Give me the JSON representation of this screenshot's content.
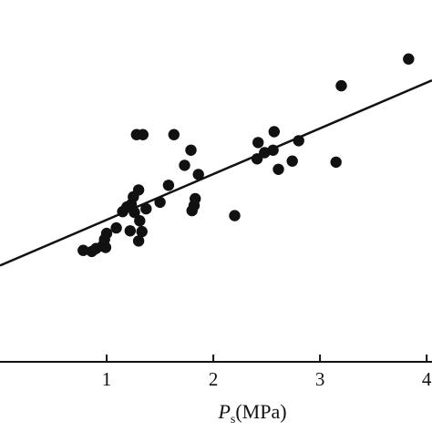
{
  "chart_data": {
    "type": "scatter",
    "xlabel_main": "P",
    "xlabel_sub": "s",
    "xlabel_unit": "(MPa)",
    "xlim": [
      0,
      4.05
    ],
    "ylim": [
      0,
      100
    ],
    "xticks": [
      {
        "value": 1,
        "label": "1"
      },
      {
        "value": 2,
        "label": "2"
      },
      {
        "value": 3,
        "label": "3"
      },
      {
        "value": 4,
        "label": "4"
      }
    ],
    "colors": {
      "points": "#111111",
      "line": "#111111",
      "axis": "#111111"
    },
    "series": [
      {
        "points": [
          [
            0.78,
            30.8
          ],
          [
            0.86,
            30.5
          ],
          [
            0.9,
            31.3
          ],
          [
            0.96,
            32.0
          ],
          [
            0.98,
            33.8
          ],
          [
            0.99,
            31.6
          ],
          [
            1.0,
            35.5
          ],
          [
            1.09,
            37.0
          ],
          [
            1.15,
            41.5
          ],
          [
            1.19,
            42.8
          ],
          [
            1.22,
            36.2
          ],
          [
            1.23,
            43.5
          ],
          [
            1.25,
            45.6
          ],
          [
            1.26,
            41.3
          ],
          [
            1.28,
            62.8
          ],
          [
            1.3,
            47.5
          ],
          [
            1.3,
            33.4
          ],
          [
            1.31,
            39.0
          ],
          [
            1.33,
            36.0
          ],
          [
            1.34,
            62.8
          ],
          [
            1.37,
            42.3
          ],
          [
            1.5,
            44.1
          ],
          [
            1.58,
            48.8
          ],
          [
            1.63,
            62.8
          ],
          [
            1.73,
            54.3
          ],
          [
            1.79,
            58.5
          ],
          [
            1.8,
            41.8
          ],
          [
            1.82,
            43.2
          ],
          [
            1.83,
            45.1
          ],
          [
            1.86,
            51.8
          ],
          [
            2.2,
            40.4
          ],
          [
            2.41,
            56.1
          ],
          [
            2.42,
            60.6
          ],
          [
            2.48,
            57.8
          ],
          [
            2.56,
            58.5
          ],
          [
            2.57,
            63.6
          ],
          [
            2.61,
            53.2
          ],
          [
            2.74,
            55.5
          ],
          [
            2.8,
            61.1
          ],
          [
            3.15,
            55.2
          ],
          [
            3.2,
            76.3
          ],
          [
            3.83,
            83.7
          ]
        ]
      }
    ],
    "trend_line": {
      "x": [
        0,
        4.05
      ],
      "y": [
        26.6,
        77.8
      ]
    }
  }
}
